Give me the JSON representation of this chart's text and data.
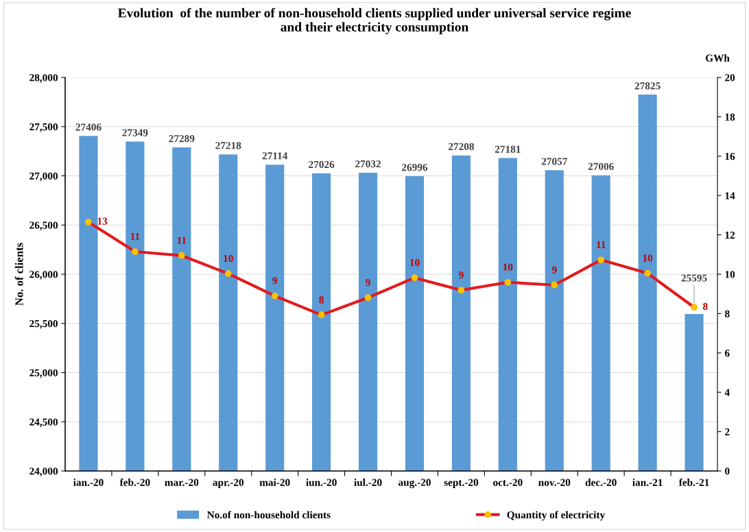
{
  "chart_data": {
    "type": "bar",
    "title": "Evolution  of the number of non-household clients supplied under universal service regime\nand their electricity consumption",
    "ylabel": "No. of clients",
    "y2label": "GWh",
    "categories": [
      "ian.-20",
      "feb.-20",
      "mar.-20",
      "apr.-20",
      "mai-20",
      "iun.-20",
      "iul.-20",
      "aug.-20",
      "sept.-20",
      "oct.-20",
      "nov.-20",
      "dec.-20",
      "ian.-21",
      "feb.-21"
    ],
    "series": [
      {
        "name": "No.of non-household clients",
        "color": "#5b9bd5",
        "data_labels": true,
        "values": [
          27406,
          27349,
          27289,
          27218,
          27114,
          27026,
          27032,
          26996,
          27208,
          27181,
          27057,
          27006,
          27825,
          25595
        ]
      },
      {
        "name": "Quantity of electricity",
        "type": "line",
        "axis": "y2",
        "color": "#e31a1c",
        "marker": "circle",
        "values": [
          12.65,
          11.15,
          10.95,
          10.03,
          8.9,
          7.93,
          8.81,
          9.82,
          9.19,
          9.59,
          9.45,
          10.73,
          10.05,
          8.32
        ],
        "value_labels": [
          "13",
          "11",
          "11",
          "10",
          "9",
          "8",
          "9",
          "10",
          "9",
          "10",
          "9",
          "11",
          "10",
          "8"
        ]
      }
    ],
    "ylim": [
      24000,
      28000
    ],
    "yticks": [
      {
        "value": 24000,
        "label": "24,000"
      },
      {
        "value": 24500,
        "label": "24,500"
      },
      {
        "value": 25000,
        "label": "25,000"
      },
      {
        "value": 25500,
        "label": "25,500"
      },
      {
        "value": 26000,
        "label": "26,000"
      },
      {
        "value": 26500,
        "label": "26,500"
      },
      {
        "value": 27000,
        "label": "27,000"
      },
      {
        "value": 27500,
        "label": "27,500"
      },
      {
        "value": 28000,
        "label": "28,000"
      }
    ],
    "y2lim": [
      0,
      20
    ],
    "y2ticks": [
      0,
      2,
      4,
      6,
      8,
      10,
      12,
      14,
      16,
      18,
      20
    ],
    "grid": "y",
    "legend": "bottom"
  }
}
